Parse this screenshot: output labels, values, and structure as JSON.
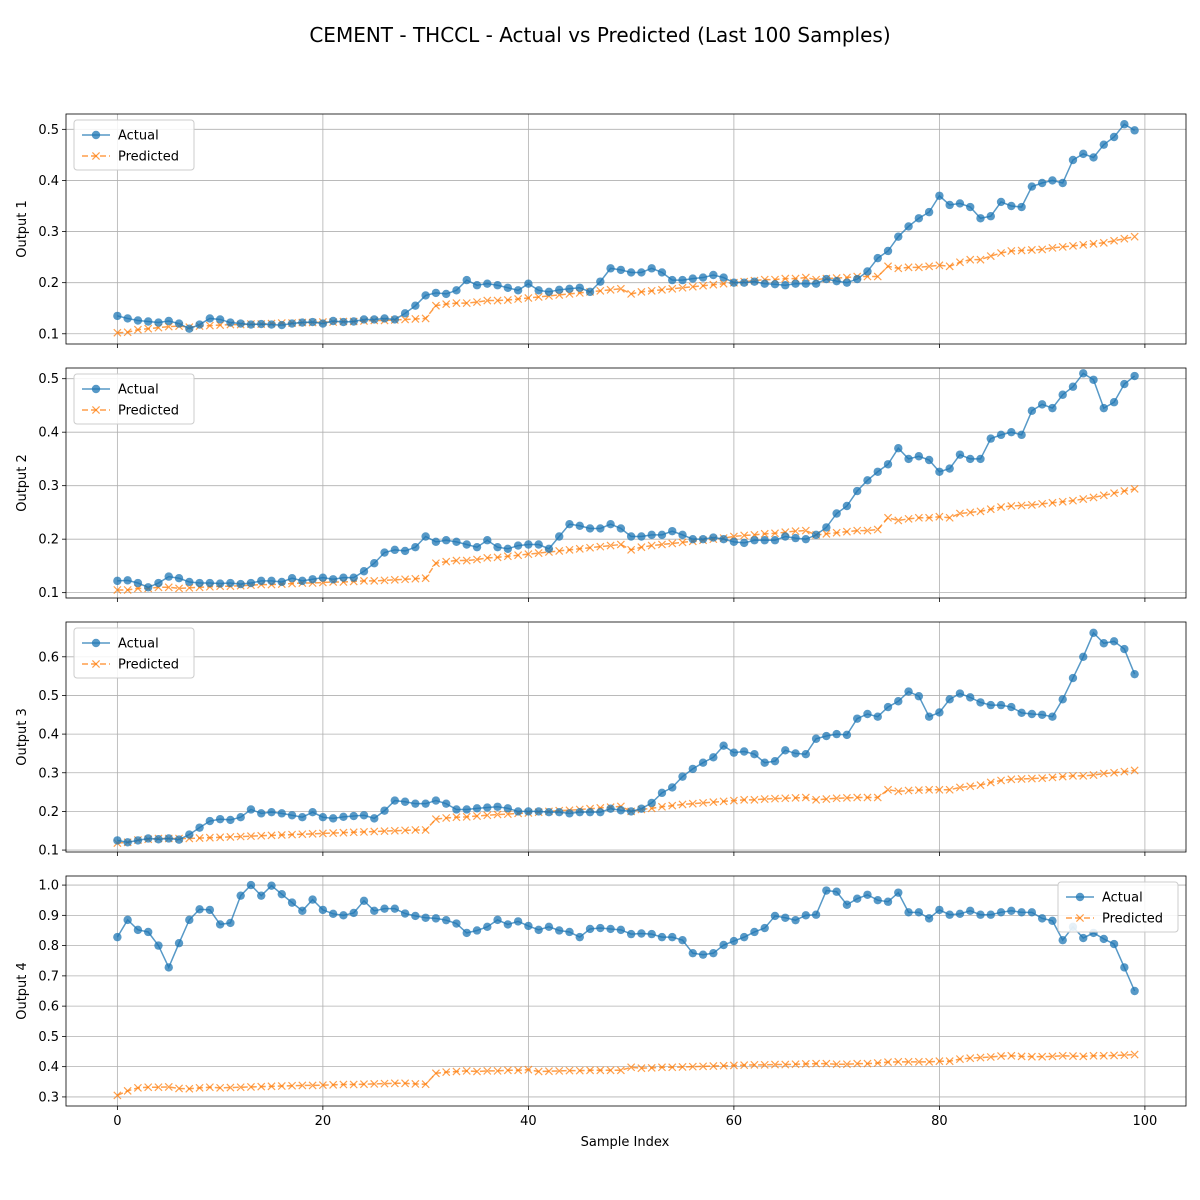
{
  "chart_data": {
    "type": "line",
    "title": "CEMENT - THCCL - Actual vs Predicted (Last 100 Samples)",
    "xlabel": "Sample Index",
    "xlim": [
      -5,
      104
    ],
    "xticks": [
      0,
      20,
      40,
      60,
      80,
      100
    ],
    "grid": true,
    "colors": {
      "actual": "#1f77b4",
      "predicted": "#ff7f0e"
    },
    "subplots": [
      {
        "ylabel": "Output 1",
        "ylim": [
          0.08,
          0.53
        ],
        "yticks": [
          0.1,
          0.2,
          0.3,
          0.4,
          0.5
        ],
        "legend": "top-left",
        "series": [
          {
            "name": "Actual",
            "values": [
              0.135,
              0.13,
              0.126,
              0.124,
              0.122,
              0.125,
              0.12,
              0.11,
              0.118,
              0.13,
              0.128,
              0.122,
              0.12,
              0.118,
              0.119,
              0.118,
              0.117,
              0.12,
              0.122,
              0.123,
              0.12,
              0.125,
              0.123,
              0.124,
              0.128,
              0.128,
              0.13,
              0.128,
              0.14,
              0.155,
              0.175,
              0.18,
              0.178,
              0.185,
              0.205,
              0.195,
              0.198,
              0.195,
              0.19,
              0.185,
              0.198,
              0.185,
              0.182,
              0.186,
              0.188,
              0.19,
              0.182,
              0.202,
              0.228,
              0.225,
              0.22,
              0.22,
              0.228,
              0.22,
              0.205,
              0.205,
              0.208,
              0.21,
              0.215,
              0.21,
              0.2,
              0.2,
              0.202,
              0.198,
              0.197,
              0.195,
              0.198,
              0.198,
              0.198,
              0.207,
              0.203,
              0.2,
              0.207,
              0.222,
              0.248,
              0.262,
              0.29,
              0.31,
              0.326,
              0.338,
              0.37,
              0.352,
              0.355,
              0.348,
              0.326,
              0.33,
              0.358,
              0.35,
              0.348,
              0.388,
              0.395,
              0.4,
              0.395,
              0.44,
              0.452,
              0.445,
              0.47,
              0.485,
              0.51,
              0.498
            ]
          },
          {
            "name": "Predicted",
            "values": [
              0.102,
              0.103,
              0.108,
              0.11,
              0.112,
              0.114,
              0.115,
              0.113,
              0.115,
              0.116,
              0.117,
              0.118,
              0.118,
              0.119,
              0.119,
              0.12,
              0.121,
              0.121,
              0.122,
              0.122,
              0.123,
              0.123,
              0.124,
              0.124,
              0.125,
              0.126,
              0.126,
              0.127,
              0.128,
              0.129,
              0.13,
              0.155,
              0.158,
              0.16,
              0.16,
              0.162,
              0.165,
              0.165,
              0.166,
              0.168,
              0.17,
              0.172,
              0.174,
              0.176,
              0.178,
              0.18,
              0.182,
              0.184,
              0.186,
              0.188,
              0.178,
              0.182,
              0.184,
              0.186,
              0.188,
              0.19,
              0.192,
              0.194,
              0.196,
              0.198,
              0.2,
              0.202,
              0.204,
              0.206,
              0.206,
              0.208,
              0.208,
              0.21,
              0.206,
              0.208,
              0.209,
              0.21,
              0.212,
              0.212,
              0.212,
              0.232,
              0.228,
              0.23,
              0.23,
              0.232,
              0.234,
              0.232,
              0.24,
              0.245,
              0.245,
              0.252,
              0.258,
              0.262,
              0.263,
              0.264,
              0.265,
              0.268,
              0.27,
              0.272,
              0.274,
              0.276,
              0.278,
              0.282,
              0.286,
              0.29
            ]
          }
        ]
      },
      {
        "ylabel": "Output 2",
        "ylim": [
          0.09,
          0.52
        ],
        "yticks": [
          0.1,
          0.2,
          0.3,
          0.4,
          0.5
        ],
        "legend": "top-left",
        "series": [
          {
            "name": "Actual",
            "values": [
              0.122,
              0.123,
              0.118,
              0.11,
              0.118,
              0.13,
              0.127,
              0.12,
              0.118,
              0.118,
              0.117,
              0.118,
              0.116,
              0.118,
              0.122,
              0.122,
              0.12,
              0.127,
              0.122,
              0.125,
              0.128,
              0.125,
              0.128,
              0.128,
              0.14,
              0.155,
              0.175,
              0.18,
              0.178,
              0.185,
              0.205,
              0.195,
              0.198,
              0.195,
              0.19,
              0.185,
              0.198,
              0.185,
              0.182,
              0.188,
              0.19,
              0.19,
              0.182,
              0.205,
              0.228,
              0.225,
              0.22,
              0.22,
              0.228,
              0.22,
              0.205,
              0.205,
              0.208,
              0.208,
              0.215,
              0.208,
              0.2,
              0.2,
              0.203,
              0.2,
              0.195,
              0.193,
              0.198,
              0.198,
              0.198,
              0.205,
              0.202,
              0.2,
              0.208,
              0.222,
              0.248,
              0.262,
              0.29,
              0.31,
              0.326,
              0.34,
              0.37,
              0.35,
              0.355,
              0.348,
              0.326,
              0.332,
              0.358,
              0.35,
              0.35,
              0.388,
              0.395,
              0.4,
              0.395,
              0.44,
              0.452,
              0.445,
              0.47,
              0.485,
              0.51,
              0.498,
              0.445,
              0.456,
              0.49,
              0.505
            ]
          },
          {
            "name": "Predicted",
            "values": [
              0.105,
              0.105,
              0.108,
              0.108,
              0.11,
              0.11,
              0.108,
              0.109,
              0.11,
              0.111,
              0.112,
              0.112,
              0.113,
              0.114,
              0.115,
              0.115,
              0.116,
              0.117,
              0.118,
              0.118,
              0.119,
              0.12,
              0.12,
              0.121,
              0.122,
              0.122,
              0.123,
              0.124,
              0.125,
              0.126,
              0.127,
              0.155,
              0.158,
              0.16,
              0.16,
              0.162,
              0.165,
              0.166,
              0.168,
              0.17,
              0.172,
              0.174,
              0.176,
              0.178,
              0.18,
              0.182,
              0.184,
              0.186,
              0.188,
              0.19,
              0.18,
              0.185,
              0.188,
              0.19,
              0.192,
              0.194,
              0.196,
              0.198,
              0.2,
              0.202,
              0.205,
              0.207,
              0.208,
              0.21,
              0.211,
              0.213,
              0.215,
              0.216,
              0.208,
              0.21,
              0.212,
              0.214,
              0.216,
              0.216,
              0.218,
              0.24,
              0.235,
              0.238,
              0.24,
              0.24,
              0.242,
              0.24,
              0.248,
              0.25,
              0.252,
              0.256,
              0.26,
              0.262,
              0.263,
              0.264,
              0.266,
              0.268,
              0.27,
              0.272,
              0.275,
              0.278,
              0.282,
              0.286,
              0.29,
              0.294
            ]
          }
        ]
      },
      {
        "ylabel": "Output 3",
        "ylim": [
          0.095,
          0.69
        ],
        "yticks": [
          0.1,
          0.2,
          0.3,
          0.4,
          0.5,
          0.6
        ],
        "legend": "top-left",
        "series": [
          {
            "name": "Actual",
            "values": [
              0.125,
              0.12,
              0.125,
              0.13,
              0.128,
              0.13,
              0.127,
              0.14,
              0.158,
              0.175,
              0.18,
              0.178,
              0.185,
              0.205,
              0.195,
              0.198,
              0.195,
              0.19,
              0.185,
              0.198,
              0.185,
              0.182,
              0.186,
              0.188,
              0.19,
              0.182,
              0.202,
              0.228,
              0.225,
              0.22,
              0.22,
              0.228,
              0.22,
              0.205,
              0.205,
              0.208,
              0.21,
              0.212,
              0.208,
              0.2,
              0.2,
              0.2,
              0.198,
              0.198,
              0.195,
              0.198,
              0.198,
              0.198,
              0.207,
              0.203,
              0.2,
              0.207,
              0.222,
              0.248,
              0.262,
              0.29,
              0.31,
              0.326,
              0.34,
              0.37,
              0.352,
              0.355,
              0.348,
              0.326,
              0.33,
              0.358,
              0.35,
              0.348,
              0.388,
              0.395,
              0.4,
              0.398,
              0.44,
              0.452,
              0.445,
              0.47,
              0.485,
              0.51,
              0.498,
              0.445,
              0.456,
              0.49,
              0.505,
              0.495,
              0.482,
              0.475,
              0.475,
              0.47,
              0.455,
              0.452,
              0.45,
              0.445,
              0.49,
              0.545,
              0.6,
              0.662,
              0.635,
              0.64,
              0.62,
              0.555
            ]
          },
          {
            "name": "Predicted",
            "values": [
              0.118,
              0.12,
              0.126,
              0.128,
              0.13,
              0.13,
              0.13,
              0.13,
              0.131,
              0.132,
              0.133,
              0.134,
              0.135,
              0.136,
              0.137,
              0.138,
              0.139,
              0.14,
              0.141,
              0.142,
              0.143,
              0.144,
              0.145,
              0.146,
              0.147,
              0.148,
              0.149,
              0.15,
              0.151,
              0.152,
              0.152,
              0.18,
              0.183,
              0.185,
              0.186,
              0.188,
              0.19,
              0.192,
              0.193,
              0.195,
              0.196,
              0.198,
              0.2,
              0.202,
              0.203,
              0.205,
              0.207,
              0.209,
              0.211,
              0.213,
              0.2,
              0.205,
              0.208,
              0.212,
              0.215,
              0.218,
              0.22,
              0.222,
              0.224,
              0.226,
              0.228,
              0.23,
              0.23,
              0.232,
              0.233,
              0.234,
              0.235,
              0.236,
              0.23,
              0.232,
              0.234,
              0.235,
              0.236,
              0.236,
              0.236,
              0.256,
              0.252,
              0.254,
              0.255,
              0.256,
              0.256,
              0.256,
              0.262,
              0.265,
              0.268,
              0.275,
              0.28,
              0.283,
              0.284,
              0.285,
              0.286,
              0.288,
              0.29,
              0.292,
              0.292,
              0.294,
              0.298,
              0.3,
              0.303,
              0.306
            ]
          }
        ]
      },
      {
        "ylabel": "Output 4",
        "ylim": [
          0.27,
          1.03
        ],
        "yticks": [
          0.3,
          0.4,
          0.5,
          0.6,
          0.7,
          0.8,
          0.9,
          1.0
        ],
        "legend": "top-right",
        "series": [
          {
            "name": "Actual",
            "values": [
              0.828,
              0.885,
              0.852,
              0.845,
              0.8,
              0.728,
              0.808,
              0.885,
              0.92,
              0.918,
              0.87,
              0.875,
              0.965,
              1.0,
              0.965,
              0.998,
              0.97,
              0.942,
              0.915,
              0.952,
              0.918,
              0.905,
              0.9,
              0.908,
              0.948,
              0.915,
              0.922,
              0.922,
              0.906,
              0.898,
              0.892,
              0.89,
              0.884,
              0.873,
              0.842,
              0.85,
              0.862,
              0.885,
              0.87,
              0.88,
              0.865,
              0.852,
              0.862,
              0.85,
              0.845,
              0.828,
              0.855,
              0.858,
              0.855,
              0.852,
              0.838,
              0.84,
              0.838,
              0.828,
              0.828,
              0.818,
              0.775,
              0.77,
              0.775,
              0.802,
              0.815,
              0.828,
              0.845,
              0.858,
              0.898,
              0.892,
              0.884,
              0.9,
              0.902,
              0.982,
              0.978,
              0.935,
              0.955,
              0.968,
              0.95,
              0.945,
              0.975,
              0.91,
              0.91,
              0.89,
              0.918,
              0.902,
              0.905,
              0.915,
              0.902,
              0.902,
              0.91,
              0.915,
              0.91,
              0.91,
              0.89,
              0.882,
              0.818,
              0.862,
              0.825,
              0.842,
              0.822,
              0.805,
              0.728,
              0.65
            ]
          },
          {
            "name": "Predicted",
            "values": [
              0.305,
              0.32,
              0.33,
              0.332,
              0.332,
              0.333,
              0.328,
              0.327,
              0.33,
              0.332,
              0.33,
              0.331,
              0.332,
              0.333,
              0.334,
              0.335,
              0.336,
              0.337,
              0.338,
              0.338,
              0.339,
              0.34,
              0.341,
              0.341,
              0.342,
              0.343,
              0.344,
              0.345,
              0.345,
              0.343,
              0.342,
              0.378,
              0.382,
              0.384,
              0.386,
              0.384,
              0.386,
              0.386,
              0.388,
              0.388,
              0.39,
              0.384,
              0.385,
              0.386,
              0.387,
              0.387,
              0.388,
              0.388,
              0.388,
              0.388,
              0.398,
              0.395,
              0.396,
              0.398,
              0.398,
              0.399,
              0.4,
              0.401,
              0.402,
              0.403,
              0.404,
              0.405,
              0.406,
              0.406,
              0.407,
              0.407,
              0.408,
              0.409,
              0.41,
              0.41,
              0.408,
              0.408,
              0.41,
              0.41,
              0.412,
              0.415,
              0.416,
              0.416,
              0.416,
              0.416,
              0.418,
              0.418,
              0.425,
              0.428,
              0.43,
              0.432,
              0.435,
              0.436,
              0.434,
              0.433,
              0.433,
              0.434,
              0.436,
              0.435,
              0.434,
              0.436,
              0.436,
              0.437,
              0.438,
              0.44
            ]
          }
        ]
      }
    ]
  }
}
